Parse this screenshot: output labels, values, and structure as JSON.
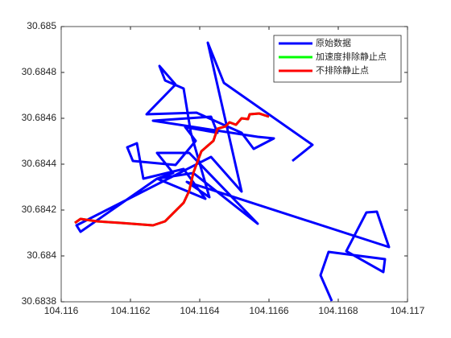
{
  "chart_data": {
    "type": "line",
    "xlim": [
      104.116,
      104.117
    ],
    "xticks": [
      104.116,
      104.1162,
      104.1164,
      104.1166,
      104.1168,
      104.117
    ],
    "ylim": [
      30.6838,
      30.685
    ],
    "yticks": [
      30.6838,
      30.684,
      30.6842,
      30.6844,
      30.6846,
      30.6848,
      30.685
    ],
    "legend": "top-right",
    "grid": false,
    "series": [
      {
        "name": "原始数据",
        "color": "#0000ff",
        "x": [
          104.1166674,
          104.1167256,
          104.1164698,
          104.1164233,
          104.1165209,
          104.1164326,
          104.1160442,
          104.1160558,
          104.1162767,
          104.1163814,
          104.1165674,
          104.1163698,
          104.1162767,
          104.1163233,
          104.1162767,
          104.1164163,
          104.1163535,
          104.1162372,
          104.1162186,
          104.1161907,
          104.116207,
          104.1163302,
          104.1163884,
          104.1163581,
          104.1164512,
          104.1164326,
          104.1162651,
          104.1165674,
          104.116614,
          104.1165558,
          104.1165209,
          104.1163907,
          104.1162465,
          104.1163302,
          104.1162837,
          104.1163,
          104.1163535,
          104.1163744,
          104.1164279,
          104.1163628,
          104.1169465,
          104.1169116,
          104.1168814,
          104.1168233,
          104.1169302,
          104.1169349,
          104.1167721,
          104.1167488,
          104.1167814
        ],
        "y": [
          30.684414,
          30.6844842,
          30.6847544,
          30.6849298,
          30.6842807,
          30.6844316,
          30.6841333,
          30.6841053,
          30.6843368,
          30.6843614,
          30.6841404,
          30.6844491,
          30.6844491,
          30.6843614,
          30.6843368,
          30.6842491,
          30.6843789,
          30.6843368,
          30.6844912,
          30.6844737,
          30.684414,
          30.6843965,
          30.6845018,
          30.6845614,
          30.6845368,
          30.684607,
          30.6845895,
          30.6845193,
          30.6845123,
          30.6844667,
          30.6845368,
          30.6846246,
          30.6846175,
          30.6847474,
          30.6848281,
          30.6847649,
          30.6847298,
          30.6845368,
          30.6842561,
          30.6843228,
          30.6840386,
          30.684193,
          30.6841895,
          30.684021,
          30.6839298,
          30.683986,
          30.6840175,
          30.6839158,
          30.6838035
        ]
      },
      {
        "name": "加速度排除静止点",
        "color": "#00ff00",
        "x": [
          104.1160395,
          104.1160558,
          104.1161023,
          104.1161721,
          104.1162651,
          104.1163,
          104.1163233,
          104.1163535,
          104.1163698,
          104.1163814,
          104.1164047,
          104.1164395,
          104.1164512,
          104.1164744,
          104.116486,
          104.1165047,
          104.1165209,
          104.1165395,
          104.1165442,
          104.1165721,
          104.1166
        ],
        "y": [
          30.6841439,
          30.6841614,
          30.6841509,
          30.6841439,
          30.6841333,
          30.6841509,
          30.684186,
          30.6842316,
          30.6842842,
          30.6843614,
          30.6844561,
          30.6845018,
          30.6845544,
          30.6845649,
          30.6845825,
          30.6845719,
          30.6846,
          30.6845965,
          30.6846175,
          30.684621,
          30.684607
        ]
      },
      {
        "name": "不排除静止点",
        "color": "#ff0000",
        "x": [
          104.1160395,
          104.1160558,
          104.1161023,
          104.1161721,
          104.1162651,
          104.1163,
          104.1163233,
          104.1163535,
          104.1163698,
          104.1163814,
          104.1164047,
          104.1164395,
          104.1164512,
          104.1164744,
          104.116486,
          104.1165047,
          104.1165209,
          104.1165395,
          104.1165442,
          104.1165721,
          104.1166
        ],
        "y": [
          30.6841439,
          30.6841614,
          30.6841509,
          30.6841439,
          30.6841333,
          30.6841509,
          30.684186,
          30.6842316,
          30.6842842,
          30.6843614,
          30.6844561,
          30.6845018,
          30.6845544,
          30.6845649,
          30.6845825,
          30.6845719,
          30.6846,
          30.6845965,
          30.6846175,
          30.684621,
          30.684607
        ]
      }
    ]
  }
}
